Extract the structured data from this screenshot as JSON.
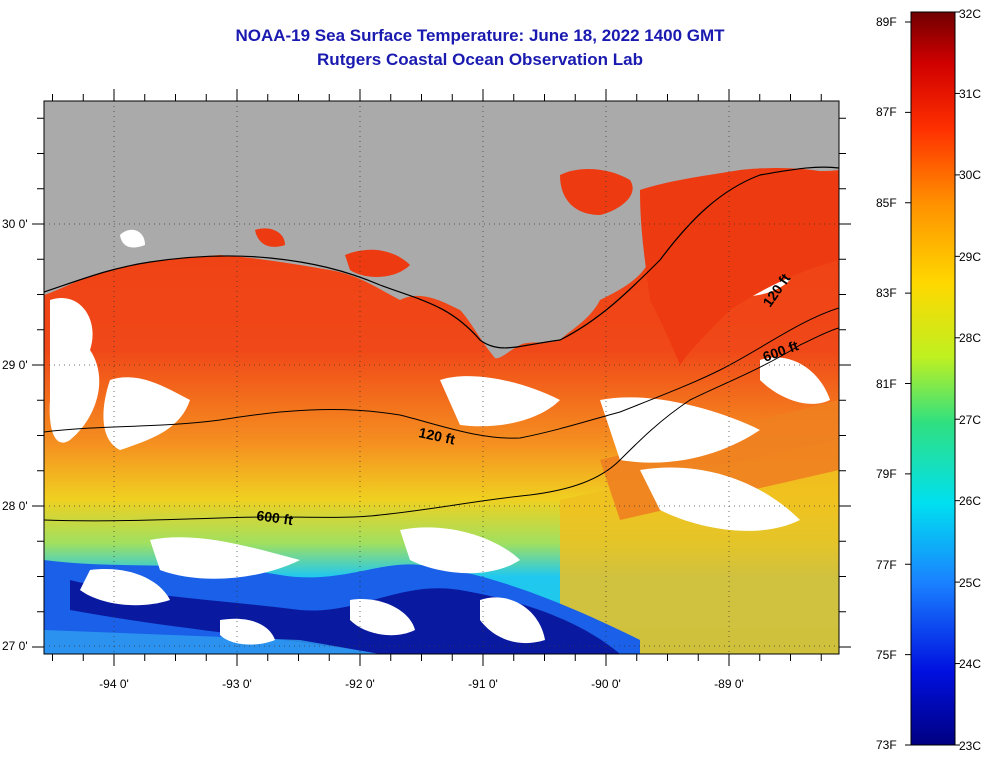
{
  "title": "NOAA-19 Sea Surface Temperature:  June 18, 2022 1400 GMT",
  "subtitle": "Rutgers Coastal Ocean Observation Lab",
  "axes": {
    "lat_labels": [
      "30 0'",
      "29 0'",
      "28 0'",
      "27 0'"
    ],
    "lon_labels": [
      "-94 0'",
      "-93 0'",
      "-92 0'",
      "-91 0'",
      "-90 0'",
      "-89 0'"
    ]
  },
  "contours": {
    "labels": [
      "120 ft",
      "600 ft",
      "120 ft",
      "600 ft"
    ]
  },
  "colorbar": {
    "fahrenheit_labels": [
      "89F",
      "87F",
      "85F",
      "83F",
      "81F",
      "79F",
      "77F",
      "75F",
      "73F"
    ],
    "celsius_labels": [
      "32C",
      "31C",
      "30C",
      "29C",
      "28C",
      "27C",
      "26C",
      "25C",
      "24C",
      "23C"
    ]
  },
  "colors": {
    "title": "#1a1ab0",
    "land": "#aaaaaa",
    "cloud": "#ffffff",
    "warm": "#ee3a10",
    "cold": "#0a1aa0"
  }
}
